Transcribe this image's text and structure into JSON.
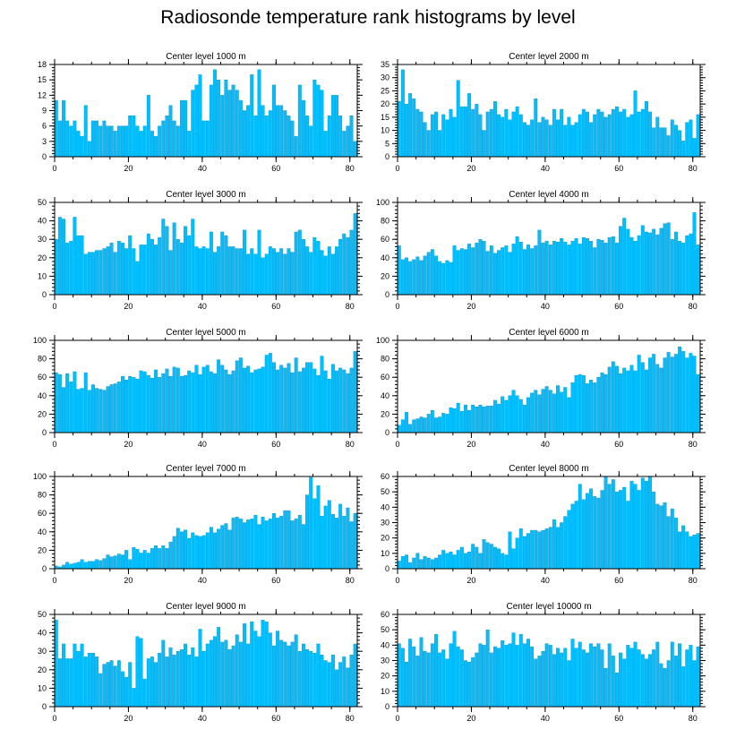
{
  "title": "Radiosonde temperature rank histograms by level",
  "colors": {
    "bar": "#00bfff",
    "bar_edge": "#0a8fc8"
  },
  "chart_data": [
    {
      "type": "bar",
      "title": "Center level 1000 m",
      "xlim": [
        0,
        82
      ],
      "ylim": [
        0,
        18
      ],
      "xticks": [
        0,
        20,
        40,
        60,
        80
      ],
      "yticks": [
        0,
        3,
        6,
        9,
        12,
        15,
        18
      ],
      "values": [
        11,
        7,
        11,
        7,
        6,
        7,
        5,
        4,
        10,
        3,
        7,
        7,
        6,
        7,
        6,
        6,
        5,
        6,
        6,
        6,
        8,
        8,
        6,
        5,
        6,
        12,
        5,
        4,
        6,
        7,
        8,
        10,
        7,
        6,
        11,
        11,
        5,
        13,
        14,
        16,
        7,
        7,
        14,
        17,
        15,
        12,
        15,
        13,
        14,
        13,
        11,
        9,
        10,
        16,
        8,
        17,
        10,
        8,
        9,
        14,
        10,
        10,
        9,
        8,
        7,
        4,
        14,
        11,
        8,
        6,
        15,
        14,
        13,
        5,
        8,
        12,
        12,
        8,
        5,
        6,
        8,
        3
      ]
    },
    {
      "type": "bar",
      "title": "Center level 2000 m",
      "xlim": [
        0,
        82
      ],
      "ylim": [
        0,
        35
      ],
      "xticks": [
        0,
        20,
        40,
        60,
        80
      ],
      "yticks": [
        0,
        5,
        10,
        15,
        20,
        25,
        30,
        35
      ],
      "values": [
        21,
        33,
        20,
        24,
        22,
        18,
        17,
        13,
        10,
        16,
        17,
        10,
        16,
        14,
        18,
        15,
        29,
        19,
        19,
        24,
        18,
        20,
        16,
        10,
        17,
        18,
        21,
        16,
        15,
        18,
        14,
        17,
        19,
        16,
        13,
        12,
        14,
        22,
        13,
        15,
        14,
        12,
        18,
        14,
        18,
        12,
        15,
        12,
        13,
        16,
        18,
        17,
        13,
        16,
        18,
        17,
        15,
        16,
        18,
        19,
        17,
        18,
        15,
        16,
        25,
        17,
        18,
        21,
        17,
        11,
        15,
        11,
        11,
        8,
        14,
        12,
        10,
        6,
        13,
        14,
        7,
        16
      ]
    },
    {
      "type": "bar",
      "title": "Center level 3000 m",
      "xlim": [
        0,
        82
      ],
      "ylim": [
        0,
        50
      ],
      "xticks": [
        0,
        20,
        40,
        60,
        80
      ],
      "yticks": [
        0,
        10,
        20,
        30,
        40,
        50
      ],
      "values": [
        30,
        42,
        41,
        28,
        29,
        42,
        32,
        32,
        22,
        23,
        23,
        24,
        24,
        25,
        26,
        28,
        23,
        29,
        28,
        25,
        32,
        25,
        18,
        27,
        27,
        33,
        30,
        27,
        31,
        41,
        37,
        24,
        39,
        30,
        28,
        37,
        32,
        41,
        26,
        25,
        26,
        25,
        34,
        23,
        26,
        34,
        32,
        26,
        26,
        25,
        25,
        35,
        22,
        25,
        22,
        35,
        20,
        22,
        26,
        25,
        23,
        25,
        22,
        25,
        23,
        34,
        35,
        30,
        26,
        23,
        31,
        29,
        24,
        21,
        26,
        22,
        26,
        30,
        33,
        31,
        35,
        44
      ]
    },
    {
      "type": "bar",
      "title": "Center level 4000 m",
      "xlim": [
        0,
        82
      ],
      "ylim": [
        0,
        100
      ],
      "xticks": [
        0,
        20,
        40,
        60,
        80
      ],
      "yticks": [
        0,
        20,
        40,
        60,
        80,
        100
      ],
      "values": [
        53,
        38,
        40,
        36,
        38,
        41,
        37,
        42,
        46,
        49,
        42,
        36,
        34,
        37,
        35,
        53,
        48,
        50,
        49,
        55,
        51,
        56,
        60,
        58,
        47,
        53,
        45,
        48,
        51,
        53,
        46,
        55,
        63,
        57,
        49,
        54,
        50,
        53,
        70,
        56,
        58,
        54,
        58,
        57,
        61,
        57,
        54,
        58,
        61,
        55,
        62,
        61,
        58,
        51,
        60,
        59,
        56,
        62,
        63,
        56,
        74,
        83,
        71,
        62,
        58,
        64,
        75,
        68,
        67,
        71,
        65,
        72,
        77,
        78,
        60,
        68,
        58,
        56,
        64,
        66,
        89,
        54
      ]
    },
    {
      "type": "bar",
      "title": "Center level 5000 m",
      "xlim": [
        0,
        82
      ],
      "ylim": [
        0,
        100
      ],
      "xticks": [
        0,
        20,
        40,
        60,
        80
      ],
      "yticks": [
        0,
        20,
        40,
        60,
        80,
        100
      ],
      "values": [
        65,
        63,
        49,
        64,
        55,
        66,
        47,
        48,
        65,
        46,
        52,
        48,
        47,
        46,
        50,
        52,
        53,
        55,
        61,
        57,
        61,
        60,
        58,
        67,
        66,
        62,
        59,
        68,
        60,
        64,
        69,
        61,
        71,
        70,
        61,
        62,
        67,
        65,
        73,
        63,
        71,
        73,
        66,
        64,
        79,
        73,
        68,
        63,
        67,
        78,
        81,
        70,
        72,
        65,
        68,
        69,
        71,
        84,
        86,
        76,
        68,
        73,
        70,
        75,
        65,
        81,
        66,
        70,
        76,
        76,
        69,
        62,
        83,
        67,
        58,
        74,
        67,
        70,
        68,
        64,
        70,
        88
      ]
    },
    {
      "type": "bar",
      "title": "Center level 6000 m",
      "xlim": [
        0,
        82
      ],
      "ylim": [
        0,
        100
      ],
      "xticks": [
        0,
        20,
        40,
        60,
        80
      ],
      "yticks": [
        0,
        20,
        40,
        60,
        80,
        100
      ],
      "values": [
        8,
        14,
        22,
        9,
        14,
        15,
        17,
        16,
        20,
        24,
        16,
        17,
        21,
        20,
        27,
        26,
        32,
        23,
        30,
        24,
        30,
        28,
        30,
        28,
        29,
        29,
        35,
        31,
        39,
        35,
        40,
        46,
        40,
        36,
        30,
        38,
        43,
        46,
        41,
        47,
        50,
        46,
        42,
        51,
        44,
        49,
        38,
        54,
        62,
        63,
        62,
        53,
        57,
        54,
        60,
        65,
        63,
        71,
        77,
        72,
        64,
        70,
        67,
        73,
        67,
        84,
        76,
        68,
        81,
        85,
        74,
        70,
        81,
        87,
        82,
        85,
        93,
        88,
        81,
        86,
        83,
        63
      ]
    },
    {
      "type": "bar",
      "title": "Center level 7000 m",
      "xlim": [
        0,
        82
      ],
      "ylim": [
        0,
        100
      ],
      "xticks": [
        0,
        20,
        40,
        60,
        80
      ],
      "yticks": [
        0,
        20,
        40,
        60,
        80,
        100
      ],
      "values": [
        3,
        2,
        4,
        7,
        5,
        6,
        7,
        10,
        7,
        8,
        8,
        10,
        9,
        11,
        15,
        13,
        14,
        16,
        15,
        20,
        10,
        23,
        21,
        17,
        20,
        17,
        22,
        25,
        22,
        25,
        22,
        29,
        35,
        44,
        40,
        42,
        33,
        39,
        36,
        35,
        36,
        39,
        45,
        39,
        43,
        47,
        49,
        42,
        55,
        56,
        54,
        50,
        53,
        54,
        58,
        48,
        56,
        52,
        54,
        60,
        55,
        57,
        63,
        63,
        52,
        54,
        58,
        48,
        80,
        99,
        76,
        90,
        57,
        68,
        74,
        59,
        55,
        70,
        57,
        66,
        51,
        60
      ]
    },
    {
      "type": "bar",
      "title": "Center level 8000 m",
      "xlim": [
        0,
        82
      ],
      "ylim": [
        0,
        60
      ],
      "xticks": [
        0,
        20,
        40,
        60,
        80
      ],
      "yticks": [
        0,
        10,
        20,
        30,
        40,
        50,
        60
      ],
      "values": [
        5,
        8,
        9,
        4,
        7,
        10,
        6,
        8,
        7,
        6,
        7,
        9,
        12,
        10,
        11,
        9,
        12,
        14,
        10,
        11,
        16,
        14,
        10,
        19,
        17,
        16,
        14,
        13,
        10,
        9,
        24,
        13,
        20,
        26,
        21,
        23,
        25,
        25,
        24,
        25,
        26,
        27,
        32,
        27,
        30,
        34,
        38,
        42,
        44,
        55,
        45,
        49,
        52,
        47,
        46,
        51,
        60,
        55,
        58,
        50,
        51,
        53,
        44,
        57,
        55,
        51,
        59,
        57,
        60,
        50,
        42,
        41,
        43,
        34,
        39,
        33,
        24,
        28,
        24,
        21,
        22,
        23
      ]
    },
    {
      "type": "bar",
      "title": "Center level 9000 m",
      "xlim": [
        0,
        82
      ],
      "ylim": [
        0,
        50
      ],
      "xticks": [
        0,
        20,
        40,
        60,
        80
      ],
      "yticks": [
        0,
        10,
        20,
        30,
        40,
        50
      ],
      "values": [
        47,
        26,
        34,
        26,
        26,
        34,
        30,
        34,
        27,
        29,
        29,
        27,
        18,
        23,
        24,
        25,
        22,
        25,
        19,
        16,
        24,
        10,
        38,
        37,
        15,
        26,
        27,
        24,
        29,
        36,
        27,
        32,
        28,
        30,
        31,
        34,
        28,
        32,
        27,
        42,
        30,
        34,
        36,
        38,
        43,
        35,
        36,
        31,
        33,
        39,
        35,
        45,
        34,
        46,
        41,
        38,
        47,
        46,
        40,
        33,
        41,
        36,
        35,
        33,
        35,
        39,
        30,
        34,
        31,
        30,
        29,
        34,
        28,
        25,
        24,
        28,
        20,
        24,
        27,
        21,
        28,
        34
      ]
    },
    {
      "type": "bar",
      "title": "Center level 10000 m",
      "xlim": [
        0,
        82
      ],
      "ylim": [
        0,
        60
      ],
      "xticks": [
        0,
        20,
        40,
        60,
        80
      ],
      "yticks": [
        0,
        10,
        20,
        30,
        40,
        50,
        60
      ],
      "values": [
        41,
        38,
        29,
        44,
        39,
        33,
        45,
        36,
        35,
        41,
        47,
        35,
        37,
        31,
        41,
        49,
        39,
        37,
        30,
        29,
        32,
        35,
        41,
        40,
        50,
        35,
        39,
        38,
        43,
        40,
        41,
        48,
        40,
        47,
        41,
        44,
        39,
        31,
        33,
        36,
        41,
        40,
        34,
        38,
        35,
        38,
        30,
        44,
        38,
        42,
        37,
        35,
        41,
        39,
        41,
        37,
        25,
        41,
        33,
        22,
        35,
        31,
        40,
        38,
        42,
        37,
        34,
        31,
        34,
        37,
        42,
        28,
        25,
        30,
        42,
        33,
        41,
        26,
        37,
        40,
        30,
        39
      ]
    }
  ]
}
